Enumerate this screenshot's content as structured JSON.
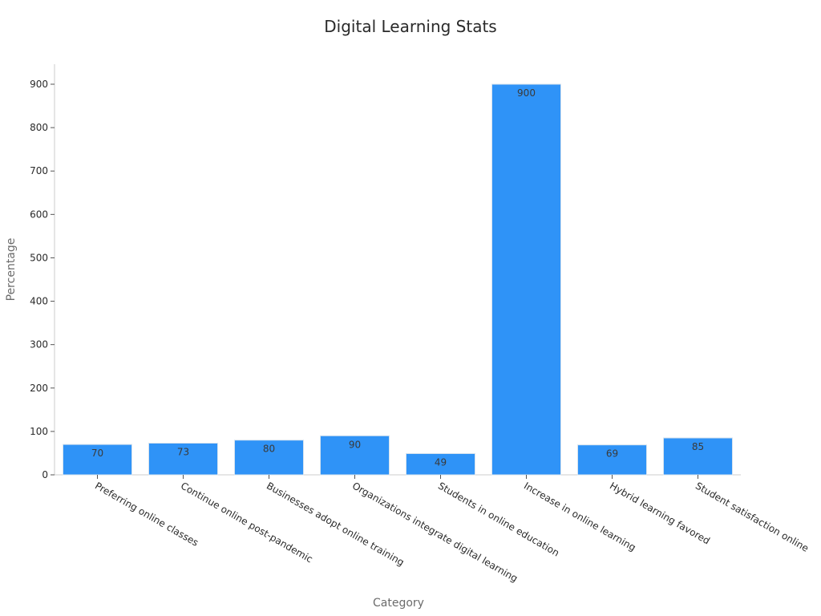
{
  "chart_data": {
    "type": "bar",
    "title": "Digital Learning Stats",
    "xlabel": "Category",
    "ylabel": "Percentage",
    "categories": [
      "Preferring online classes",
      "Continue online post-pandemic",
      "Businesses adopt online training",
      "Organizations integrate digital learning",
      "Students in online education",
      "Increase in online learning",
      "Hybrid learning favored",
      "Student satisfaction online"
    ],
    "values": [
      70,
      73,
      80,
      90,
      49,
      900,
      69,
      85
    ],
    "ylim": [
      0,
      950
    ],
    "yticks": [
      0,
      100,
      200,
      300,
      400,
      500,
      600,
      700,
      800,
      900
    ],
    "grid": false,
    "legend": "none",
    "colors": {
      "bar": "#2f93f7",
      "bar_edge": "#d7e3ee",
      "axis": "#cccccc"
    }
  }
}
